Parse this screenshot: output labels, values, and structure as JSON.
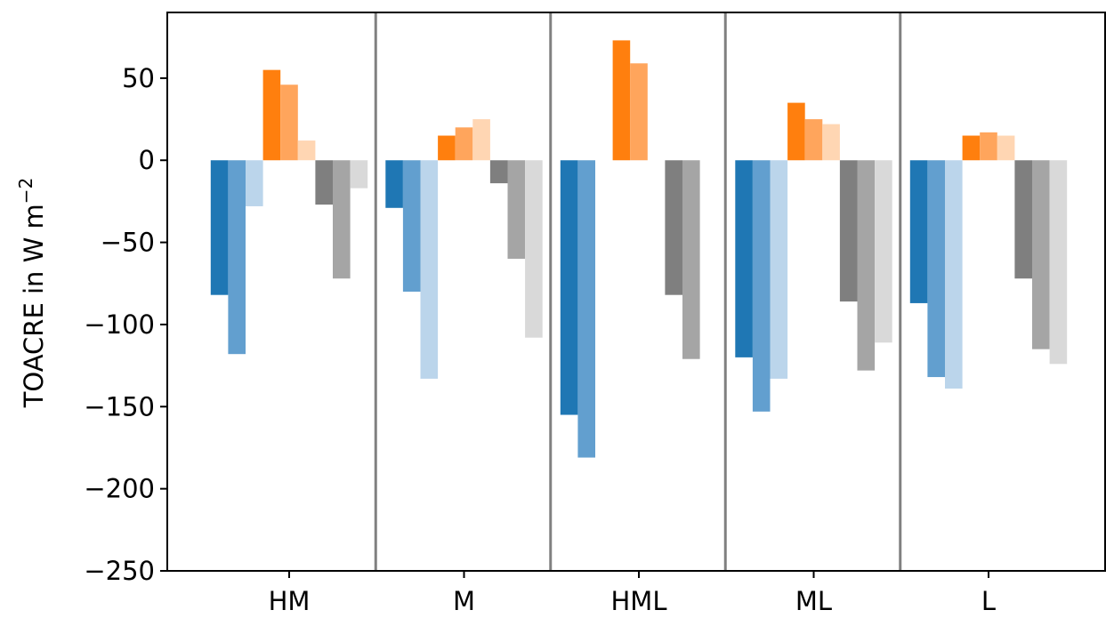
{
  "chart_data": {
    "type": "bar",
    "categories": [
      "HM",
      "M",
      "HML",
      "ML",
      "L"
    ],
    "ylabel": {
      "text": "TOACRE in W m",
      "superscript": "−2"
    },
    "ylim": [
      -250,
      90
    ],
    "yticks": [
      50,
      0,
      -50,
      -100,
      -150,
      -200,
      -250
    ],
    "ytick_labels": [
      "50",
      "0",
      "−50",
      "−100",
      "−150",
      "−200",
      "−250"
    ],
    "grid": false,
    "legend": "none",
    "bars_per_category": 9,
    "series": [
      {
        "color": "#1f77b4",
        "values": [
          -82,
          -29,
          -155,
          -120,
          -87
        ]
      },
      {
        "color": "#629fcf",
        "values": [
          -118,
          -80,
          -181,
          -153,
          -132
        ]
      },
      {
        "color": "#bbd5eb",
        "values": [
          -28,
          -133,
          null,
          -133,
          -139
        ]
      },
      {
        "color": "#ff7f0e",
        "values": [
          55,
          15,
          73,
          35,
          15
        ]
      },
      {
        "color": "#ffa55c",
        "values": [
          46,
          20,
          59,
          25,
          17
        ]
      },
      {
        "color": "#ffd6b3",
        "values": [
          12,
          25,
          null,
          22,
          15
        ]
      },
      {
        "color": "#7f7f7f",
        "values": [
          -27,
          -14,
          -82,
          -86,
          -72
        ]
      },
      {
        "color": "#a5a5a5",
        "values": [
          -72,
          -60,
          -121,
          -128,
          -115
        ]
      },
      {
        "color": "#d9d9d9",
        "values": [
          -17,
          -108,
          null,
          -111,
          -124
        ]
      }
    ],
    "separator_color": "#808080"
  }
}
